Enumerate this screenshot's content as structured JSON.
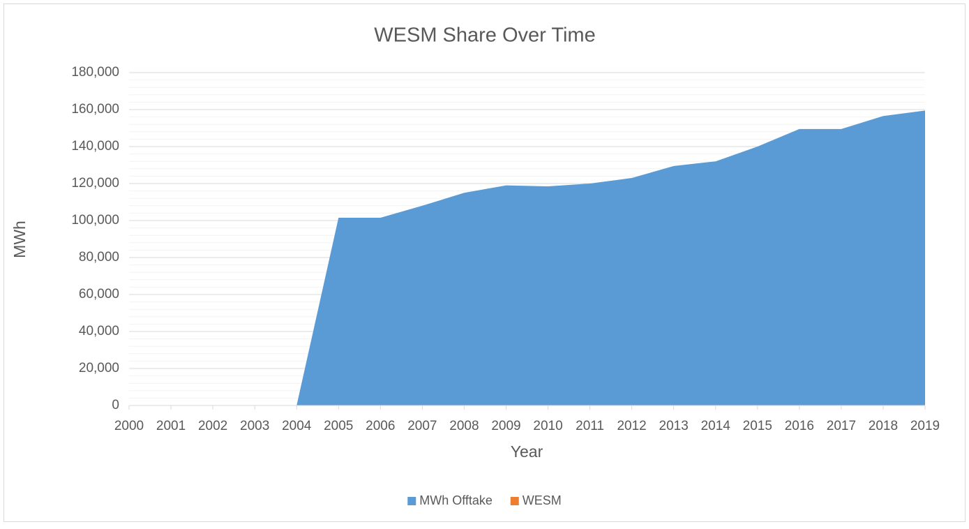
{
  "chart_data": {
    "type": "area",
    "stacked": true,
    "title": "WESM Share Over Time",
    "x_label": "Year",
    "y_label": "MWh",
    "categories": [
      "2000",
      "2001",
      "2002",
      "2003",
      "2004",
      "2005",
      "2006",
      "2007",
      "2008",
      "2009",
      "2010",
      "2011",
      "2012",
      "2013",
      "2014",
      "2015",
      "2016",
      "2017",
      "2018",
      "2019"
    ],
    "series": [
      {
        "name": "MWh Offtake",
        "color": "#5b9bd5",
        "values": [
          0,
          0,
          0,
          0,
          0,
          101500,
          101500,
          108000,
          115000,
          119000,
          118500,
          120000,
          123000,
          129500,
          132000,
          140000,
          149500,
          149500,
          156500,
          159500
        ]
      },
      {
        "name": "WESM",
        "color": "#ed7d31",
        "values": [
          0,
          0,
          0,
          0,
          0,
          0,
          0,
          0,
          0,
          0,
          0,
          0,
          0,
          0,
          0,
          0,
          0,
          0,
          0,
          0
        ]
      }
    ],
    "ylim": [
      0,
      180000
    ],
    "yticks": [
      0,
      {
        "value": 20000,
        "label": "20,000"
      },
      {
        "value": 40000,
        "label": "40,000"
      },
      {
        "value": 60000,
        "label": "60,000"
      },
      {
        "value": 80000,
        "label": "80,000"
      },
      {
        "value": 100000,
        "label": "100,000"
      },
      {
        "value": 120000,
        "label": "120,000"
      },
      {
        "value": 140000,
        "label": "140,000"
      },
      {
        "value": 160000,
        "label": "160,000"
      },
      {
        "value": 180000,
        "label": "180,000"
      }
    ],
    "minor_yticks": [
      4000,
      8000,
      12000,
      16000,
      24000,
      28000,
      32000,
      36000,
      44000,
      48000,
      52000,
      56000,
      64000,
      68000,
      72000,
      76000,
      84000,
      88000,
      92000,
      96000,
      104000,
      108000,
      112000,
      116000,
      124000,
      128000,
      132000,
      136000,
      144000,
      148000,
      152000,
      156000,
      164000,
      168000,
      172000,
      176000
    ],
    "grid": true,
    "minor_grid": true,
    "legend": "bottom"
  }
}
